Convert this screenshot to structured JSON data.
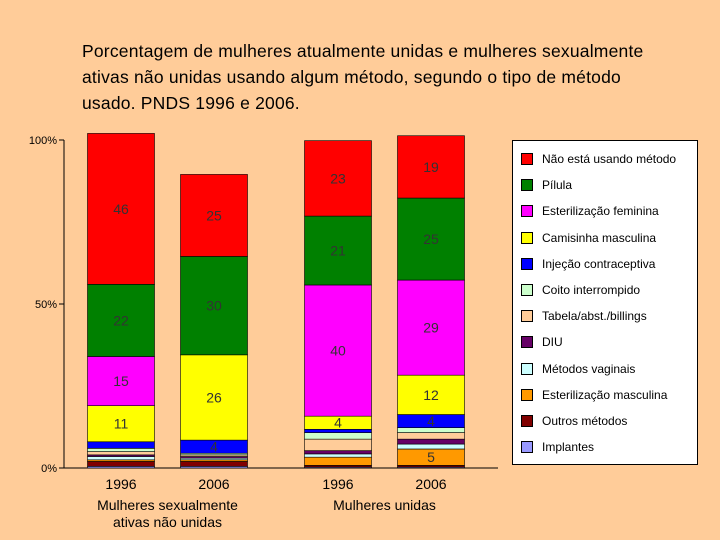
{
  "title": "Porcentagem de mulheres atualmente unidas e mulheres sexualmente ativas não unidas usando algum método, segundo o tipo de método usado. PNDS 1996 e 2006.",
  "chart_data": {
    "type": "bar",
    "stacked": true,
    "ylim": [
      0,
      100
    ],
    "yticks": [
      "0%",
      "50%",
      "100%"
    ],
    "legend_position": "right",
    "categories": [
      "1996",
      "2006",
      "1996",
      "2006"
    ],
    "groups": [
      {
        "label": "Mulheres sexualmente ativas não unidas",
        "line1": "Mulheres sexualmente",
        "line2": "ativas não unidas",
        "categories": [
          0,
          1
        ]
      },
      {
        "label": "Mulheres unidas",
        "line1": "Mulheres unidas",
        "line2": "",
        "categories": [
          2,
          3
        ]
      }
    ],
    "series": [
      {
        "name": "Implantes",
        "color": "#9999FF",
        "values": [
          0.5,
          0.5,
          0.3,
          0.3
        ],
        "labels": [
          "",
          "",
          "",
          ""
        ]
      },
      {
        "name": "Outros métodos",
        "color": "#800000",
        "values": [
          1.5,
          1.5,
          0.5,
          0.5
        ],
        "labels": [
          "",
          "",
          "",
          ""
        ]
      },
      {
        "name": "Esterilização masculina",
        "color": "#FF9900",
        "values": [
          0.5,
          0.5,
          2.5,
          5
        ],
        "labels": [
          "",
          "",
          "",
          "5"
        ]
      },
      {
        "name": "Métodos vaginais",
        "color": "#CCFFFF",
        "values": [
          1,
          0.5,
          1,
          1.5
        ],
        "labels": [
          "",
          "",
          "",
          ""
        ]
      },
      {
        "name": "DIU",
        "color": "#660066",
        "values": [
          0.5,
          0.5,
          1,
          1.5
        ],
        "labels": [
          "",
          "",
          "",
          ""
        ]
      },
      {
        "name": "Tabela/abst./billings",
        "color": "#FFCC99",
        "values": [
          1,
          0.5,
          3.5,
          2
        ],
        "labels": [
          "",
          "",
          "",
          ""
        ]
      },
      {
        "name": "Coito interrompido",
        "color": "#CCFFCC",
        "values": [
          1,
          0.5,
          2,
          1.5
        ],
        "labels": [
          "",
          "",
          "",
          ""
        ]
      },
      {
        "name": "Injeção contraceptiva",
        "color": "#0000FF",
        "values": [
          2,
          4,
          1,
          4
        ],
        "labels": [
          "",
          "4",
          "",
          "4"
        ]
      },
      {
        "name": "Camisinha masculina",
        "color": "#FFFF00",
        "values": [
          11,
          26,
          4,
          12
        ],
        "labels": [
          "11",
          "26",
          "4",
          "12"
        ]
      },
      {
        "name": "Esterilização feminina",
        "color": "#FF00FF",
        "values": [
          15,
          0,
          40,
          29
        ],
        "labels": [
          "15",
          "",
          "40",
          "29"
        ]
      },
      {
        "name": "Pílula",
        "color": "#008000",
        "values": [
          22,
          30,
          21,
          25
        ],
        "labels": [
          "22",
          "30",
          "21",
          "25"
        ]
      },
      {
        "name": "Não está usando método",
        "color": "#FF0000",
        "values": [
          46,
          25,
          23,
          19
        ],
        "labels": [
          "46",
          "25",
          "23",
          "19"
        ]
      }
    ],
    "legend": [
      "Não está usando método",
      "Pílula",
      "Esterilização feminina",
      "Camisinha masculina",
      "Injeção contraceptiva",
      "Coito interrompido",
      "Tabela/abst./billings",
      "DIU",
      "Métodos vaginais",
      "Esterilização masculina",
      "Outros métodos",
      "Implantes"
    ]
  }
}
